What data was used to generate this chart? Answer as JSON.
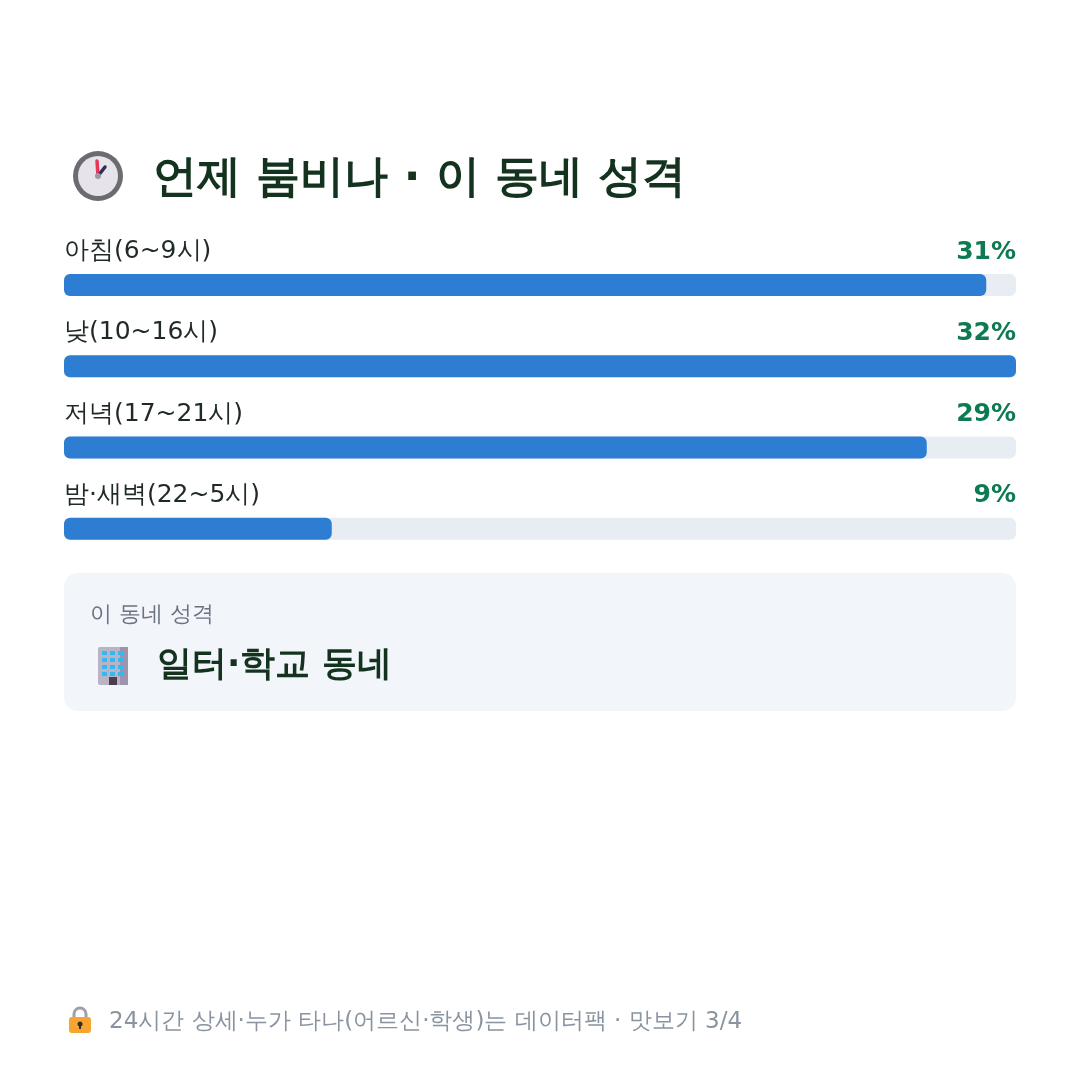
{
  "chart_data": {
    "type": "bar",
    "orientation": "horizontal",
    "title": "언제 붐비나 · 이 동네 성격",
    "categories": [
      "아침(6~9시)",
      "낮(10~16시)",
      "저녁(17~21시)",
      "밤·새벽(22~5시)"
    ],
    "values": [
      31,
      32,
      29,
      9
    ],
    "value_labels": [
      "31%",
      "32%",
      "29%",
      "9%"
    ],
    "color": "#2d7dd2",
    "tick_labels": "y",
    "annotations": [
      "이 동네 성격",
      "일터·학교 동네",
      "24시간 상세·누가 타나(어르신·학생)는 데이터팩 · 맛보기 3/4"
    ]
  }
}
